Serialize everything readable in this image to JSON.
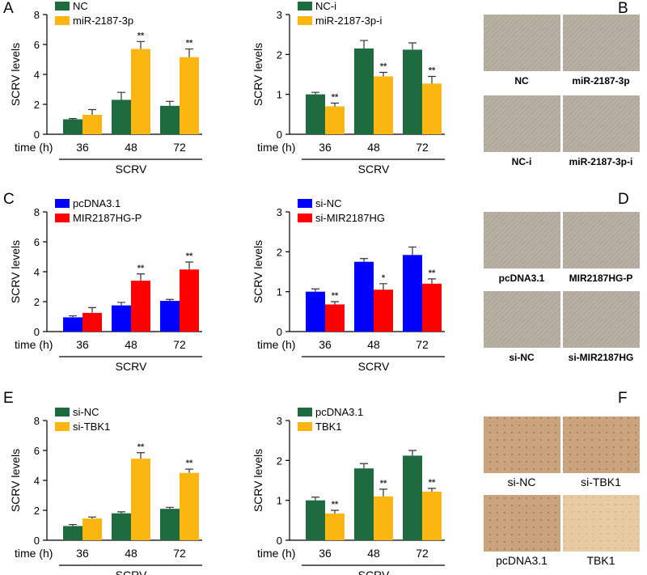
{
  "panel_letters": [
    "A",
    "B",
    "C",
    "D",
    "E",
    "F"
  ],
  "chart_data": [
    {
      "type": "bar",
      "ylabel": "SCRV levels",
      "xaxis_title": "time (h)",
      "xlabel": "SCRV",
      "categories": [
        "36",
        "48",
        "72"
      ],
      "ylim": [
        0,
        8
      ],
      "yticks": [
        0,
        2,
        4,
        6,
        8
      ],
      "series": [
        {
          "name": "NC",
          "color": "#1e6b3f",
          "values": [
            1.0,
            2.3,
            1.9
          ],
          "errors": [
            0.05,
            0.5,
            0.3
          ]
        },
        {
          "name": "miR-2187-3p",
          "color": "#fbb612",
          "values": [
            1.3,
            5.7,
            5.15
          ],
          "errors": [
            0.35,
            0.5,
            0.55
          ],
          "annotations": [
            null,
            "**",
            "**"
          ]
        }
      ]
    },
    {
      "type": "bar",
      "ylabel": "SCRV levels",
      "xaxis_title": "time (h)",
      "xlabel": "SCRV",
      "categories": [
        "36",
        "48",
        "72"
      ],
      "ylim": [
        0,
        3
      ],
      "yticks": [
        0,
        1,
        2,
        3
      ],
      "series": [
        {
          "name": "NC-i",
          "color": "#1e6b3f",
          "values": [
            1.0,
            2.15,
            2.12
          ],
          "errors": [
            0.05,
            0.2,
            0.17
          ]
        },
        {
          "name": "miR-2187-3p-i",
          "color": "#fbb612",
          "values": [
            0.7,
            1.45,
            1.27
          ],
          "errors": [
            0.08,
            0.1,
            0.18
          ],
          "annotations": [
            "**",
            "**",
            "**"
          ]
        }
      ]
    },
    {
      "type": "bar",
      "ylabel": "SCRV levels",
      "xaxis_title": "time (h)",
      "xlabel": "SCRV",
      "categories": [
        "36",
        "48",
        "72"
      ],
      "ylim": [
        0,
        8
      ],
      "yticks": [
        0,
        2,
        4,
        6,
        8
      ],
      "series": [
        {
          "name": "pcDNA3.1",
          "color": "#0000ff",
          "values": [
            0.95,
            1.75,
            2.05
          ],
          "errors": [
            0.1,
            0.2,
            0.1
          ]
        },
        {
          "name": "MIR2187HG-P",
          "color": "#ff0000",
          "values": [
            1.25,
            3.4,
            4.15
          ],
          "errors": [
            0.35,
            0.45,
            0.5
          ],
          "annotations": [
            null,
            "**",
            "**"
          ]
        }
      ]
    },
    {
      "type": "bar",
      "ylabel": "SCRV levels",
      "xaxis_title": "time (h)",
      "xlabel": "SCRV",
      "categories": [
        "36",
        "48",
        "72"
      ],
      "ylim": [
        0,
        3
      ],
      "yticks": [
        0,
        1,
        2,
        3
      ],
      "series": [
        {
          "name": "si-NC",
          "color": "#0000ff",
          "values": [
            1.0,
            1.75,
            1.92
          ],
          "errors": [
            0.07,
            0.08,
            0.2
          ]
        },
        {
          "name": "si-MIR2187HG",
          "color": "#ff0000",
          "values": [
            0.68,
            1.05,
            1.2
          ],
          "errors": [
            0.07,
            0.15,
            0.12
          ],
          "annotations": [
            "**",
            "*",
            "**"
          ]
        }
      ]
    },
    {
      "type": "bar",
      "ylabel": "SCRV levels",
      "xaxis_title": "time (h)",
      "xlabel": "SCRV",
      "categories": [
        "36",
        "48",
        "72"
      ],
      "ylim": [
        0,
        8
      ],
      "yticks": [
        0,
        2,
        4,
        6,
        8
      ],
      "series": [
        {
          "name": "si-NC",
          "color": "#1e6b3f",
          "values": [
            0.95,
            1.8,
            2.1
          ],
          "errors": [
            0.1,
            0.1,
            0.1
          ]
        },
        {
          "name": "si-TBK1",
          "color": "#fbb612",
          "values": [
            1.45,
            5.45,
            4.5
          ],
          "errors": [
            0.1,
            0.4,
            0.25
          ],
          "annotations": [
            null,
            "**",
            "**"
          ]
        }
      ]
    },
    {
      "type": "bar",
      "ylabel": "SCRV levels",
      "xaxis_title": "time (h)",
      "xlabel": "SCRV",
      "categories": [
        "36",
        "48",
        "72"
      ],
      "ylim": [
        0,
        3
      ],
      "yticks": [
        0,
        1,
        2,
        3
      ],
      "series": [
        {
          "name": "pcDNA3.1",
          "color": "#1e6b3f",
          "values": [
            1.0,
            1.8,
            2.12
          ],
          "errors": [
            0.08,
            0.12,
            0.13
          ]
        },
        {
          "name": "TBK1",
          "color": "#fbb612",
          "values": [
            0.67,
            1.1,
            1.22
          ],
          "errors": [
            0.08,
            0.18,
            0.08
          ],
          "annotations": [
            "**",
            "**",
            "**"
          ]
        }
      ]
    }
  ],
  "image_panels": [
    {
      "labels": [
        "NC",
        "miR-2187-3p",
        "NC-i",
        "miR-2187-3p-i"
      ]
    },
    {
      "labels": [
        "pcDNA3.1",
        "MIR2187HG-P",
        "si-NC",
        "si-MIR2187HG"
      ]
    },
    {
      "labels": [
        "si-NC",
        "si-TBK1",
        "pcDNA3.1",
        "TBK1"
      ]
    }
  ]
}
